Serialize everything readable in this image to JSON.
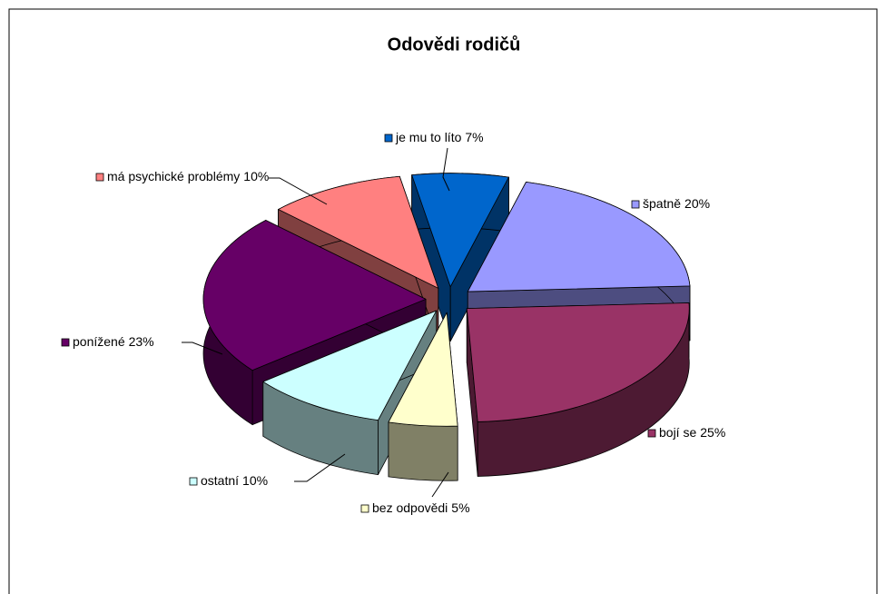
{
  "chart_data": {
    "type": "pie3d",
    "title": "Odovědi rodičů",
    "categories": [
      "je mu to líto",
      "špatně",
      "bojí se",
      "bez odpovědi",
      "ostatní",
      "ponížené",
      "má psychické problémy"
    ],
    "values": [
      7,
      20,
      25,
      5,
      10,
      23,
      10
    ],
    "value_labels": [
      "7%",
      "20%",
      "25%",
      "5%",
      "10%",
      "23%",
      "10%"
    ],
    "colors": [
      "#0066cc",
      "#9999ff",
      "#993366",
      "#ffffcc",
      "#ccffff",
      "#660066",
      "#ff8080"
    ],
    "exploded": true
  }
}
